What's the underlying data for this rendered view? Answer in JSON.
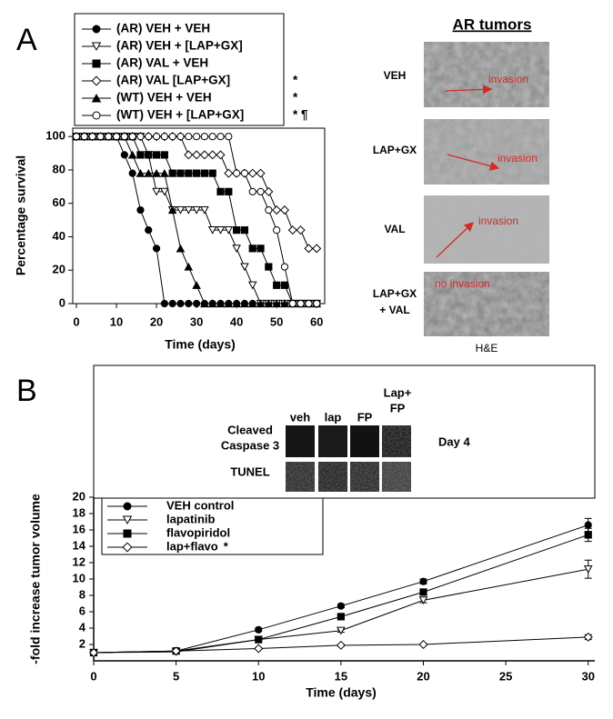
{
  "chart_data": [
    {
      "type": "line",
      "x_label": "Time (days)",
      "y_label": "Percentage survival",
      "x": [
        0,
        2,
        4,
        6,
        8,
        10,
        12,
        14,
        16,
        18,
        20,
        22,
        24,
        26,
        28,
        30,
        32,
        34,
        36,
        38,
        40,
        42,
        44,
        46,
        48,
        50,
        52,
        54,
        56,
        58,
        60
      ],
      "xlim": [
        0,
        62
      ],
      "xticks": [
        0,
        10,
        20,
        30,
        40,
        50,
        60
      ],
      "ylim": [
        0,
        105
      ],
      "yticks": [
        0,
        20,
        40,
        60,
        80,
        100
      ],
      "series": [
        {
          "name": "(AR) VEH + VEH",
          "color": "#000000",
          "marker": "circle",
          "filled": true,
          "values": [
            100,
            100,
            100,
            100,
            100,
            100,
            89,
            78,
            56,
            44,
            33,
            0,
            0,
            0,
            0,
            0,
            0,
            0,
            0,
            0,
            0,
            0,
            0,
            0,
            0,
            0,
            0,
            0,
            0,
            0,
            0
          ]
        },
        {
          "name": "(AR) VEH + [LAP+GX]",
          "color": "#000000",
          "marker": "triangle-down",
          "filled": false,
          "values": [
            100,
            100,
            100,
            100,
            100,
            100,
            100,
            100,
            100,
            89,
            67,
            67,
            56,
            56,
            56,
            56,
            56,
            44,
            44,
            44,
            33,
            22,
            11,
            0,
            0,
            0,
            0,
            0,
            0,
            0,
            0
          ]
        },
        {
          "name": "(AR) VAL + VEH",
          "color": "#000000",
          "marker": "square",
          "filled": true,
          "values": [
            100,
            100,
            100,
            100,
            100,
            100,
            100,
            100,
            89,
            89,
            89,
            89,
            78,
            78,
            78,
            78,
            78,
            78,
            67,
            67,
            44,
            44,
            33,
            33,
            22,
            11,
            11,
            0,
            0,
            0,
            0
          ]
        },
        {
          "name": "(AR) VAL [LAP+GX]",
          "color": "#000000",
          "marker": "diamond",
          "filled": false,
          "values": [
            100,
            100,
            100,
            100,
            100,
            100,
            100,
            100,
            100,
            100,
            100,
            100,
            100,
            100,
            89,
            89,
            89,
            89,
            89,
            78,
            78,
            78,
            78,
            78,
            67,
            56,
            56,
            44,
            44,
            33,
            33
          ]
        },
        {
          "name": "(WT) VEH + VEH",
          "color": "#000000",
          "marker": "triangle-up",
          "filled": true,
          "values": [
            100,
            100,
            100,
            100,
            100,
            100,
            100,
            89,
            78,
            78,
            78,
            78,
            56,
            33,
            22,
            11,
            0,
            0,
            0,
            0,
            0,
            0,
            0,
            0,
            0,
            0,
            0,
            0,
            0,
            0,
            0
          ]
        },
        {
          "name": "(WT) VEH + [LAP+GX]",
          "color": "#000000",
          "marker": "circle",
          "filled": false,
          "values": [
            100,
            100,
            100,
            100,
            100,
            100,
            100,
            100,
            100,
            100,
            100,
            100,
            100,
            100,
            100,
            100,
            100,
            100,
            100,
            100,
            78,
            78,
            67,
            67,
            56,
            44,
            22,
            0,
            0,
            0,
            0
          ]
        }
      ],
      "annotations": [
        "*",
        "*",
        "* ¶"
      ]
    },
    {
      "type": "line",
      "x_label": "Time (days)",
      "y_label": "-fold increase tumor volume",
      "x": [
        0,
        5,
        10,
        15,
        20,
        30
      ],
      "xlim": [
        0,
        30.4
      ],
      "xticks": [
        0,
        5,
        10,
        15,
        20,
        25,
        30
      ],
      "ylim": [
        0,
        20
      ],
      "yticks": [
        2,
        4,
        6,
        8,
        10,
        12,
        14,
        16,
        18,
        20
      ],
      "series": [
        {
          "name": "VEH control",
          "color": "#000000",
          "marker": "circle",
          "filled": true,
          "values": [
            1,
            1.2,
            3.8,
            6.7,
            9.7,
            16.6
          ],
          "errors": [
            0,
            0.1,
            0.2,
            0.2,
            0.3,
            0.8
          ]
        },
        {
          "name": "lapatinib",
          "color": "#000000",
          "marker": "triangle-down",
          "filled": false,
          "values": [
            1,
            1.1,
            2.6,
            3.7,
            7.4,
            11.2
          ],
          "errors": [
            0,
            0.1,
            0.1,
            0.2,
            0.3,
            1.1
          ]
        },
        {
          "name": "flavopiridol",
          "color": "#000000",
          "marker": "square",
          "filled": true,
          "values": [
            1,
            1.2,
            2.6,
            5.4,
            8.4,
            15.4
          ],
          "errors": [
            0,
            0.1,
            0.1,
            0.2,
            0.3,
            0.8
          ]
        },
        {
          "name": "lap+flavo",
          "color": "#000000",
          "marker": "diamond",
          "filled": false,
          "values": [
            1,
            1.2,
            1.5,
            1.9,
            2.0,
            2.9
          ],
          "errors": [
            0,
            0.1,
            0.1,
            0.1,
            0.1,
            0.3
          ]
        }
      ],
      "annotations": [
        "*"
      ]
    }
  ],
  "figure": {
    "panel_labels": [
      "A",
      "B"
    ],
    "tumors": {
      "title": "AR tumors",
      "panels": [
        {
          "label": [
            "VEH"
          ],
          "note": "invasion"
        },
        {
          "label": [
            "LAP+GX"
          ],
          "note": "invasion"
        },
        {
          "label": [
            "VAL"
          ],
          "note": "invasion"
        },
        {
          "label": [
            "LAP+GX",
            "+ VAL"
          ],
          "note": "no invasion"
        }
      ],
      "caption": "H&E"
    },
    "inset": {
      "columns": [
        [
          "veh"
        ],
        [
          "lap"
        ],
        [
          "FP"
        ],
        [
          "Lap+",
          "FP"
        ]
      ],
      "rows": [
        [
          "Cleaved",
          "Caspase 3"
        ],
        [
          "TUNEL"
        ]
      ],
      "timepoint": "Day 4"
    }
  }
}
